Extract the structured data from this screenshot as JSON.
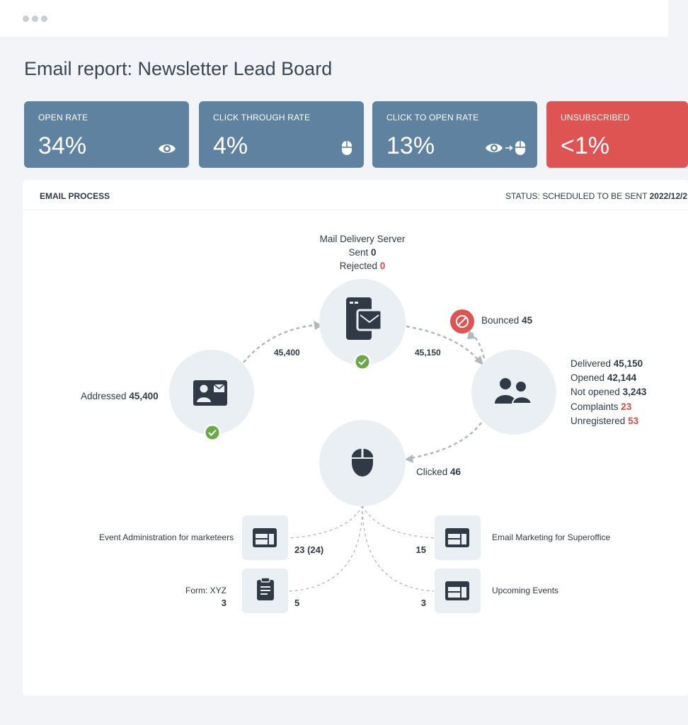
{
  "window": {
    "title": "Email report: Newsletter Lead Board"
  },
  "colors": {
    "accent_blue": "#5e82a0",
    "alert_red": "#dd5453",
    "success_green": "#6aaa44",
    "node_bg": "#eaeff4",
    "icon_dark": "#2f3a46"
  },
  "cards": [
    {
      "label": "OPEN RATE",
      "value": "34%",
      "icon": "eye-icon"
    },
    {
      "label": "CLICK THROUGH RATE",
      "value": "4%",
      "icon": "mouse-icon"
    },
    {
      "label": "CLICK TO OPEN RATE",
      "value": "13%",
      "icon": "eye-to-mouse-icon",
      "arrow": "→"
    },
    {
      "label": "UNSUBSCRIBED",
      "value": "<1%",
      "icon": ""
    }
  ],
  "process": {
    "title": "EMAIL PROCESS",
    "status_label": "STATUS: SCHEDULED TO BE SENT",
    "status_date": "2022/12/2",
    "server": {
      "name": "Mail Delivery Server",
      "sent_label": "Sent",
      "sent_value": "0",
      "rejected_label": "Rejected",
      "rejected_value": "0"
    },
    "addressed": {
      "label": "Addressed",
      "value": "45,400"
    },
    "edge_addressed_server": "45,400",
    "edge_server_recipients": "45,150",
    "bounced": {
      "label": "Bounced",
      "value": "45"
    },
    "recipients": [
      {
        "label": "Delivered",
        "value": "45,150",
        "alert": false
      },
      {
        "label": "Opened",
        "value": "42,144",
        "alert": false
      },
      {
        "label": "Not opened",
        "value": "3,243",
        "alert": false
      },
      {
        "label": "Complaints",
        "value": "23",
        "alert": true
      },
      {
        "label": "Unregistered",
        "value": "53",
        "alert": true
      }
    ],
    "clicked": {
      "label": "Clicked",
      "value": "46"
    },
    "links": [
      {
        "name": "Event Administration for marketeers",
        "value": "23 (24)"
      },
      {
        "name": "Form: XYZ",
        "sub": "3",
        "value": "5"
      },
      {
        "name": "Email Marketing for Superoffice",
        "value": "15"
      },
      {
        "name": "Upcoming Events",
        "value": "3"
      }
    ]
  }
}
